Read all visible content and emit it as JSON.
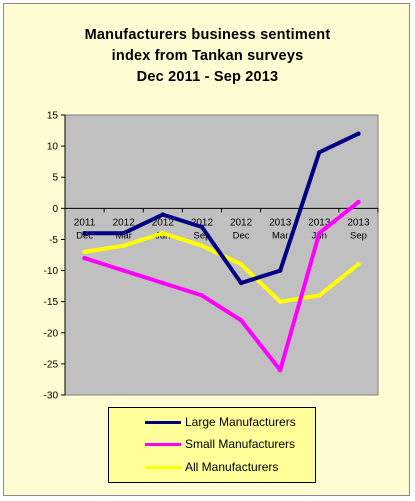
{
  "title": [
    "Manufacturers business sentiment",
    "index from Tankan surveys",
    "Dec 2011 - Sep 2013"
  ],
  "chart_data": {
    "type": "line",
    "title": "Manufacturers business sentiment index from Tankan surveys Dec 2011 - Sep 2013",
    "categories": [
      {
        "year": "2011",
        "month": "Dec"
      },
      {
        "year": "2012",
        "month": "Mar"
      },
      {
        "year": "2012",
        "month": "Jun"
      },
      {
        "year": "2012",
        "month": "Sep"
      },
      {
        "year": "2012",
        "month": "Dec"
      },
      {
        "year": "2013",
        "month": "Mar"
      },
      {
        "year": "2013",
        "month": "Jun"
      },
      {
        "year": "2013",
        "month": "Sep"
      }
    ],
    "ylim": [
      -30,
      15
    ],
    "yticks": [
      15,
      10,
      5,
      0,
      -5,
      -10,
      -15,
      -20,
      -25,
      -30
    ],
    "grid": false,
    "legend_position": "bottom",
    "plot_background": "#c0c0c0",
    "series": [
      {
        "name": "Large Manufacturers",
        "color": "#000080",
        "values": [
          -4,
          -4,
          -1,
          -3,
          -12,
          -10,
          9,
          12
        ]
      },
      {
        "name": "Small Manufacturers",
        "color": "#ff00ff",
        "values": [
          -8,
          -10,
          -12,
          -14,
          -18,
          -26,
          -4,
          1
        ]
      },
      {
        "name": "All Manufacturers",
        "color": "#ffff00",
        "values": [
          -7,
          -6,
          -4,
          -6,
          -9,
          -15,
          -14,
          -9
        ]
      }
    ]
  }
}
